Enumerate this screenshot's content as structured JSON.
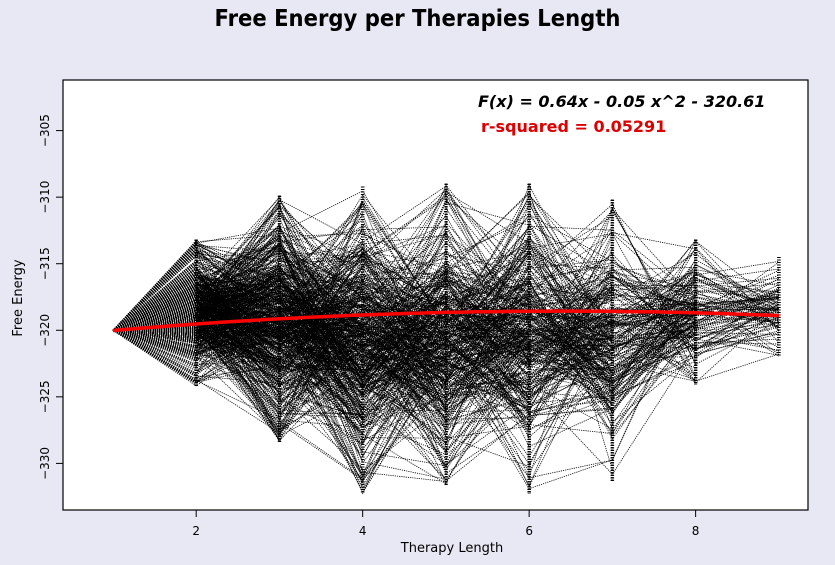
{
  "chart_data": {
    "type": "line",
    "title": "Free Energy per Therapies Length",
    "xlabel": "Therapy Length",
    "ylabel": "Free Energy",
    "xlim": [
      0.4,
      9.35
    ],
    "ylim": [
      -333.5,
      -301.2
    ],
    "x_ticks": [
      2,
      4,
      6,
      8
    ],
    "y_ticks": [
      -330,
      -325,
      -320,
      -315,
      -310,
      -305
    ],
    "grid": false,
    "annotation_formula": "F(x) = 0.64x - 0.05 x^2 - 320.61",
    "annotation_r2": "r-squared = 0.05291",
    "fit": {
      "a": 0.64,
      "b": -0.05,
      "c": -320.61,
      "x_from": 1,
      "x_to": 9
    },
    "band_ranges": [
      {
        "x": 1,
        "ymin": -320,
        "ymax": -320
      },
      {
        "x": 2,
        "ymin": -324.2,
        "ymax": -313.2
      },
      {
        "x": 3,
        "ymin": -328.5,
        "ymax": -309.9
      },
      {
        "x": 4,
        "ymin": -332.3,
        "ymax": -309.2
      },
      {
        "x": 5,
        "ymin": -331.6,
        "ymax": -309.0
      },
      {
        "x": 6,
        "ymin": -332.3,
        "ymax": -309.0
      },
      {
        "x": 7,
        "ymin": -331.3,
        "ymax": -310.2
      },
      {
        "x": 8,
        "ymin": -324.1,
        "ymax": -313.2
      },
      {
        "x": 9,
        "ymin": -322.0,
        "ymax": -314.5
      }
    ]
  },
  "colors": {
    "fit_line": "#ff0000",
    "trajectories": "#000000",
    "background": "#e8e8f4",
    "r2_text": "#dd0000"
  }
}
